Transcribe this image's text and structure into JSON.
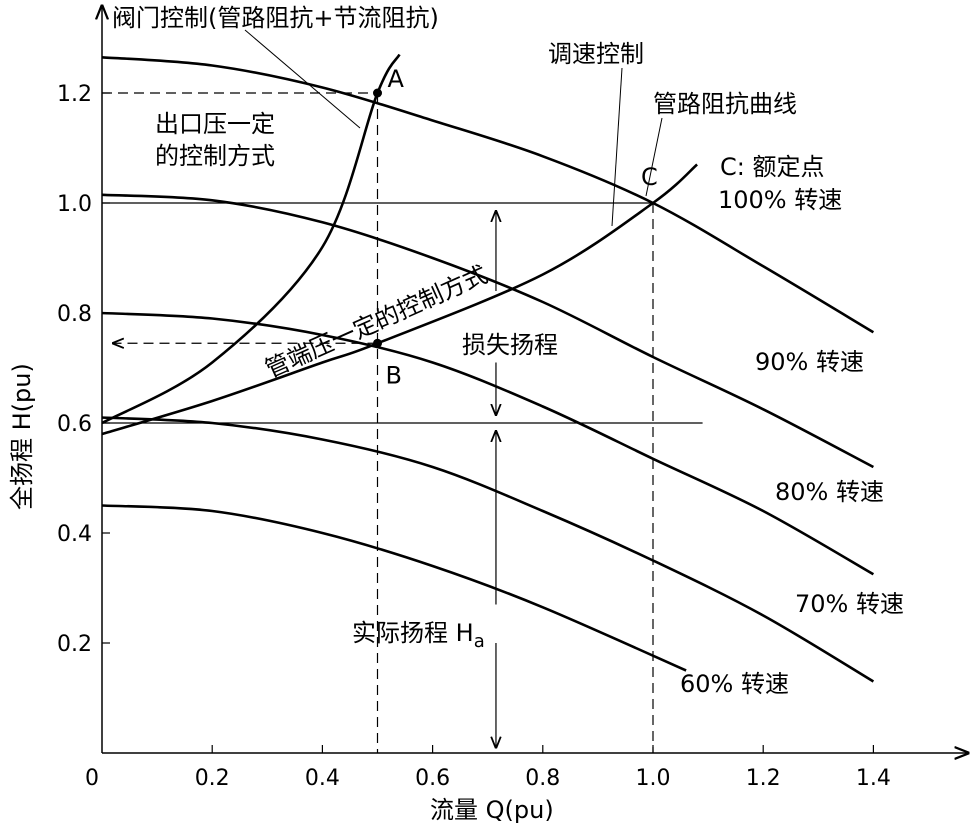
{
  "chart_data": {
    "type": "line",
    "xlabel": "流量 Q(pu)",
    "ylabel": "全扬程 H(pu)",
    "xlim": [
      0,
      1.5
    ],
    "ylim": [
      0,
      1.3
    ],
    "x_ticks": [
      "0",
      "0.2",
      "0.4",
      "0.6",
      "0.8",
      "1.0",
      "1.2",
      "1.4"
    ],
    "y_ticks": [
      "0.2",
      "0.4",
      "0.6",
      "0.8",
      "1.0",
      "1.2"
    ],
    "series": [
      {
        "name": "100% 转速",
        "points": [
          [
            0,
            1.265
          ],
          [
            0.2,
            1.25
          ],
          [
            0.4,
            1.21
          ],
          [
            0.6,
            1.15
          ],
          [
            0.8,
            1.085
          ],
          [
            1.0,
            1.0
          ],
          [
            1.2,
            0.885
          ],
          [
            1.4,
            0.765
          ]
        ]
      },
      {
        "name": "90% 转速",
        "points": [
          [
            0,
            1.015
          ],
          [
            0.2,
            1.005
          ],
          [
            0.4,
            0.965
          ],
          [
            0.6,
            0.9
          ],
          [
            0.8,
            0.82
          ],
          [
            1.0,
            0.72
          ],
          [
            1.2,
            0.625
          ],
          [
            1.4,
            0.52
          ]
        ]
      },
      {
        "name": "80% 转速",
        "points": [
          [
            0,
            0.8
          ],
          [
            0.2,
            0.79
          ],
          [
            0.4,
            0.76
          ],
          [
            0.6,
            0.71
          ],
          [
            0.8,
            0.63
          ],
          [
            1.0,
            0.535
          ],
          [
            1.2,
            0.44
          ],
          [
            1.4,
            0.325
          ]
        ]
      },
      {
        "name": "70% 转速",
        "points": [
          [
            0,
            0.61
          ],
          [
            0.2,
            0.6
          ],
          [
            0.4,
            0.57
          ],
          [
            0.6,
            0.52
          ],
          [
            0.8,
            0.44
          ],
          [
            1.0,
            0.35
          ],
          [
            1.2,
            0.25
          ],
          [
            1.4,
            0.13
          ]
        ]
      },
      {
        "name": "60% 转速",
        "points": [
          [
            0,
            0.45
          ],
          [
            0.2,
            0.44
          ],
          [
            0.4,
            0.4
          ],
          [
            0.6,
            0.34
          ],
          [
            0.8,
            0.265
          ],
          [
            1.06,
            0.15
          ]
        ]
      },
      {
        "name": "出口压一定的控制方式",
        "points": [
          [
            0,
            0.6
          ],
          [
            0.2,
            0.71
          ],
          [
            0.4,
            0.92
          ],
          [
            0.5,
            1.2
          ],
          [
            0.54,
            1.27
          ]
        ]
      },
      {
        "name": "管端压一定的控制方式",
        "points": [
          [
            0,
            0.58
          ],
          [
            0.2,
            0.64
          ],
          [
            0.4,
            0.71
          ],
          [
            0.5,
            0.745
          ],
          [
            0.8,
            0.87
          ],
          [
            1.0,
            1.0
          ],
          [
            1.08,
            1.07
          ]
        ]
      }
    ],
    "points": [
      {
        "label": "A",
        "x": 0.5,
        "y": 1.2
      },
      {
        "label": "B",
        "x": 0.5,
        "y": 0.745
      },
      {
        "label": "C",
        "x": 1.0,
        "y": 1.0
      }
    ],
    "annotations": {
      "valve_control": "阀门控制(管路阻抗+节流阻抗)",
      "speed_control": "调速控制",
      "pipe_curve": "管路阻抗曲线",
      "outlet_pressure_line1": "出口压一定",
      "outlet_pressure_line2": "的控制方式",
      "pipe_end_pressure": "管端压一定的控制方式",
      "rated_point": "C: 额定点",
      "loss_head": "损失扬程",
      "actual_head": "实际扬程 H",
      "actual_head_sub": "a"
    },
    "grid": false,
    "legend": "none"
  },
  "colors": {
    "stroke": "#000000",
    "background": "#ffffff"
  }
}
